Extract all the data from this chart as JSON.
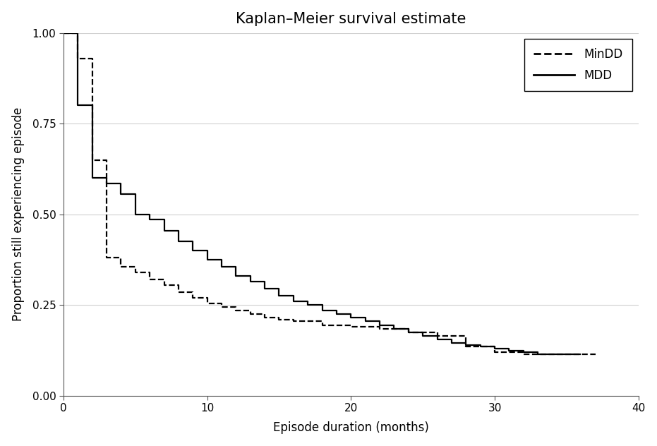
{
  "title": "Kaplan–Meier survival estimate",
  "xlabel": "Episode duration (months)",
  "ylabel": "Proportion still experiencing episode",
  "xlim": [
    0,
    40
  ],
  "ylim": [
    0.0,
    1.0
  ],
  "xticks": [
    0,
    10,
    20,
    30,
    40
  ],
  "yticks": [
    0.0,
    0.25,
    0.5,
    0.75,
    1.0
  ],
  "background_color": "#ffffff",
  "grid_color": "#d0d0d0",
  "title_fontsize": 15,
  "axis_label_fontsize": 12,
  "tick_fontsize": 11,
  "legend_fontsize": 12,
  "linewidth": 1.6,
  "mindd_t": [
    0,
    1,
    1,
    2,
    2,
    3,
    3,
    4,
    4,
    5,
    5,
    6,
    6,
    7,
    7,
    8,
    8,
    9,
    9,
    10,
    10,
    11,
    11,
    12,
    12,
    13,
    13,
    14,
    14,
    15,
    15,
    16,
    16,
    18,
    18,
    20,
    20,
    22,
    22,
    24,
    24,
    26,
    26,
    28,
    28,
    30,
    30,
    32,
    32,
    34,
    34,
    36,
    36,
    37
  ],
  "mindd_s": [
    1.0,
    1.0,
    0.93,
    0.93,
    0.65,
    0.65,
    0.38,
    0.38,
    0.355,
    0.355,
    0.34,
    0.34,
    0.32,
    0.32,
    0.305,
    0.305,
    0.285,
    0.285,
    0.27,
    0.27,
    0.255,
    0.255,
    0.245,
    0.245,
    0.235,
    0.235,
    0.225,
    0.225,
    0.215,
    0.215,
    0.21,
    0.21,
    0.205,
    0.205,
    0.195,
    0.195,
    0.19,
    0.19,
    0.185,
    0.185,
    0.175,
    0.175,
    0.165,
    0.165,
    0.135,
    0.135,
    0.12,
    0.12,
    0.115,
    0.115,
    0.115,
    0.115,
    0.115,
    0.115
  ],
  "mdd_t": [
    0,
    1,
    1,
    2,
    2,
    3,
    3,
    4,
    4,
    5,
    5,
    6,
    6,
    7,
    7,
    8,
    8,
    9,
    9,
    10,
    10,
    11,
    11,
    12,
    12,
    13,
    13,
    14,
    14,
    15,
    15,
    16,
    16,
    17,
    17,
    18,
    18,
    19,
    19,
    20,
    20,
    21,
    21,
    22,
    22,
    23,
    23,
    24,
    24,
    25,
    25,
    26,
    26,
    27,
    27,
    28,
    28,
    29,
    29,
    30,
    30,
    31,
    31,
    32,
    32,
    33,
    33,
    34,
    34,
    35,
    35,
    36
  ],
  "mdd_s": [
    1.0,
    1.0,
    0.8,
    0.8,
    0.6,
    0.6,
    0.585,
    0.585,
    0.555,
    0.555,
    0.5,
    0.5,
    0.485,
    0.485,
    0.455,
    0.455,
    0.425,
    0.425,
    0.4,
    0.4,
    0.375,
    0.375,
    0.355,
    0.355,
    0.33,
    0.33,
    0.315,
    0.315,
    0.295,
    0.295,
    0.275,
    0.275,
    0.26,
    0.26,
    0.25,
    0.25,
    0.235,
    0.235,
    0.225,
    0.225,
    0.215,
    0.215,
    0.205,
    0.205,
    0.195,
    0.195,
    0.185,
    0.185,
    0.175,
    0.175,
    0.165,
    0.165,
    0.155,
    0.155,
    0.145,
    0.145,
    0.14,
    0.14,
    0.135,
    0.135,
    0.13,
    0.13,
    0.125,
    0.125,
    0.12,
    0.12,
    0.115,
    0.115,
    0.115,
    0.115,
    0.115,
    0.115
  ]
}
